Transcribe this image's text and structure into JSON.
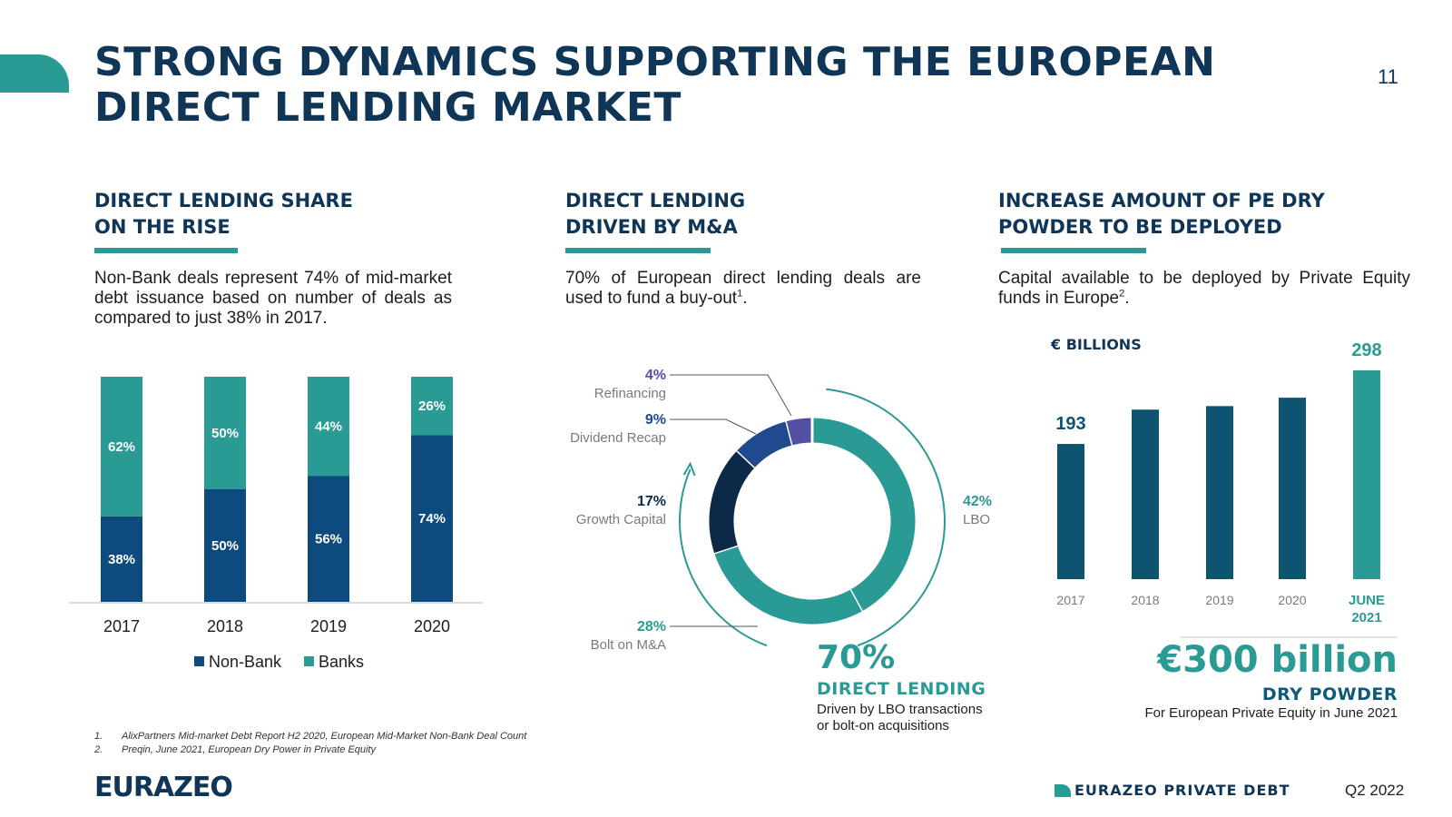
{
  "page": {
    "title": "STRONG DYNAMICS SUPPORTING THE EUROPEAN DIRECT LENDING MARKET",
    "page_number": "11",
    "logo": "EURAZEO",
    "brand": "EURAZEO PRIVATE DEBT",
    "quarter": "Q2 2022"
  },
  "sections": [
    {
      "heading_line1": "DIRECT LENDING SHARE",
      "heading_line2": "ON THE RISE",
      "body": "Non-Bank deals represent 74% of mid-market debt issuance based on number of deals as compared to just 38% in 2017."
    },
    {
      "heading_line1": "DIRECT LENDING",
      "heading_line2": "DRIVEN BY M&A",
      "body": "70% of European direct lending deals are used to fund a buy-out",
      "body_sup": "1",
      "body_end": "."
    },
    {
      "heading_line1": "INCREASE AMOUNT OF PE DRY",
      "heading_line2": "POWDER TO BE DEPLOYED",
      "body": "Capital available to be deployed by Private Equity funds in Europe",
      "body_sup": "2",
      "body_end": "."
    }
  ],
  "highlights": {
    "dl_pct": "70%",
    "dl_label": "DIRECT LENDING",
    "dl_sub1": "Driven by LBO transactions",
    "dl_sub2": "or bolt-on acquisitions",
    "dp_amount": "€300 billion",
    "dp_label": "DRY POWDER",
    "dp_sub": "For European Private Equity in June 2021",
    "unit": "€ BILLIONS"
  },
  "footnotes": [
    {
      "num": "1.",
      "text": "AlixPartners Mid-market Debt Report H2 2020, European Mid-Market Non-Bank Deal Count"
    },
    {
      "num": "2.",
      "text": "Preqin, June 2021, European Dry Power in Private Equity"
    }
  ],
  "colors": {
    "teal": "#2a9a94",
    "nonbank": "#0d4a7e",
    "navy": "#0f3557",
    "bar_dark": "#0d5470",
    "growth": "#0c2a47",
    "div_recap": "#1f4a8f",
    "refinancing": "#5150a2"
  },
  "chart_data": [
    {
      "type": "bar",
      "stacked": true,
      "categories": [
        "2017",
        "2018",
        "2019",
        "2020"
      ],
      "series": [
        {
          "name": "Non-Bank",
          "values": [
            38,
            50,
            56,
            74
          ],
          "labels": [
            "38%",
            "50%",
            "56%",
            "74%"
          ],
          "color": "#0d4a7e"
        },
        {
          "name": "Banks",
          "values": [
            62,
            50,
            44,
            26
          ],
          "labels": [
            "62%",
            "50%",
            "44%",
            "26%"
          ],
          "color": "#2a9a94"
        }
      ],
      "ylim": [
        0,
        100
      ],
      "legend": "bottom"
    },
    {
      "type": "pie",
      "donut": true,
      "slices": [
        {
          "label": "LBO",
          "value": 42,
          "pct": "42%",
          "color": "#2a9a94"
        },
        {
          "label": "Bolt on M&A",
          "value": 28,
          "pct": "28%",
          "color": "#2a9a94"
        },
        {
          "label": "Growth Capital",
          "value": 17,
          "pct": "17%",
          "color": "#0c2a47"
        },
        {
          "label": "Dividend Recap",
          "value": 9,
          "pct": "9%",
          "color": "#1f4a8f"
        },
        {
          "label": "Refinancing",
          "value": 4,
          "pct": "4%",
          "color": "#5150a2"
        }
      ]
    },
    {
      "type": "bar",
      "categories": [
        "2017",
        "2018",
        "2019",
        "2020",
        "JUNE 2021"
      ],
      "values": [
        193,
        242,
        247,
        259,
        298
      ],
      "data_labels": [
        "193",
        "",
        "",
        "",
        "298"
      ],
      "ylim": [
        0,
        320
      ],
      "highlight_color": "#2a9a94",
      "color": "#0d5470"
    }
  ]
}
